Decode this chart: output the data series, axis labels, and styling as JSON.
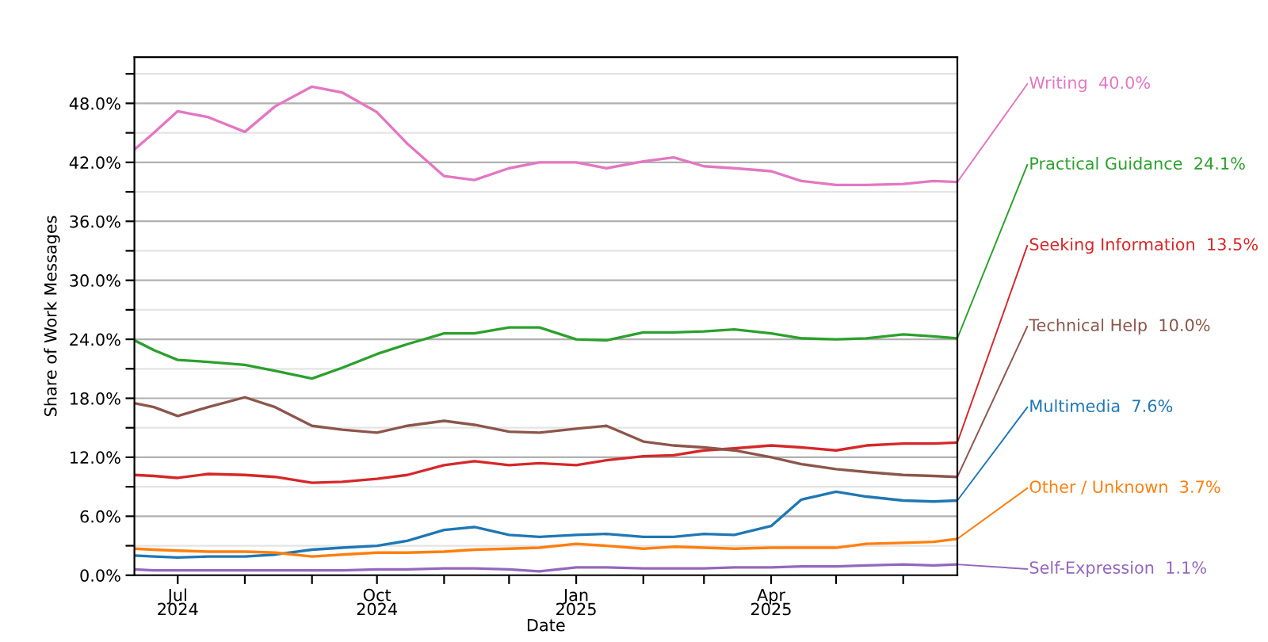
{
  "chart_data": {
    "type": "line",
    "xlabel": "Date",
    "ylabel": "Share of Work Messages",
    "x": [
      "2024-06-11",
      "2024-06-20",
      "2024-07-01",
      "2024-07-15",
      "2024-08-01",
      "2024-08-15",
      "2024-09-01",
      "2024-09-15",
      "2024-10-01",
      "2024-10-15",
      "2024-11-01",
      "2024-11-15",
      "2024-12-01",
      "2024-12-15",
      "2025-01-01",
      "2025-01-15",
      "2025-02-01",
      "2025-02-15",
      "2025-03-01",
      "2025-03-15",
      "2025-04-01",
      "2025-04-15",
      "2025-05-01",
      "2025-05-15",
      "2025-06-01",
      "2025-06-15",
      "2025-06-26"
    ],
    "series": [
      {
        "name": "Writing",
        "color": "#e377c2",
        "values": [
          43.3,
          45.0,
          47.2,
          46.6,
          45.1,
          47.7,
          49.7,
          49.1,
          47.1,
          43.9,
          40.6,
          40.2,
          41.4,
          42.0,
          42.0,
          41.4,
          42.1,
          42.5,
          41.6,
          41.4,
          41.1,
          40.1,
          39.7,
          39.7,
          39.8,
          40.1,
          40.0
        ],
        "value_labels": [
          null,
          null,
          null,
          null,
          null,
          null,
          null,
          null,
          null,
          null,
          null,
          null,
          null,
          null,
          null,
          null,
          null,
          null,
          null,
          null,
          null,
          null,
          null,
          null,
          null,
          null,
          "40.0%"
        ]
      },
      {
        "name": "Practical Guidance",
        "color": "#2ca02c",
        "values": [
          23.9,
          22.9,
          21.9,
          21.7,
          21.4,
          20.8,
          20.0,
          21.1,
          22.5,
          23.5,
          24.6,
          24.6,
          25.2,
          25.2,
          24.0,
          23.9,
          24.7,
          24.7,
          24.8,
          25.0,
          24.6,
          24.1,
          24.0,
          24.1,
          24.5,
          24.3,
          24.1
        ],
        "value_labels": [
          null,
          null,
          null,
          null,
          null,
          null,
          null,
          null,
          null,
          null,
          null,
          null,
          null,
          null,
          null,
          null,
          null,
          null,
          null,
          null,
          null,
          null,
          null,
          null,
          null,
          null,
          "24.1%"
        ]
      },
      {
        "name": "Seeking Information",
        "color": "#d62728",
        "values": [
          10.2,
          10.1,
          9.9,
          10.3,
          10.2,
          10.0,
          9.4,
          9.5,
          9.8,
          10.2,
          11.2,
          11.6,
          11.2,
          11.4,
          11.2,
          11.7,
          12.1,
          12.2,
          12.7,
          12.9,
          13.2,
          13.0,
          12.7,
          13.2,
          13.4,
          13.4,
          13.5
        ],
        "value_labels": [
          null,
          null,
          null,
          null,
          null,
          null,
          null,
          null,
          null,
          null,
          null,
          null,
          null,
          null,
          null,
          null,
          null,
          null,
          null,
          null,
          null,
          null,
          null,
          null,
          null,
          null,
          "13.5%"
        ]
      },
      {
        "name": "Technical Help",
        "color": "#8c564b",
        "values": [
          17.5,
          17.1,
          16.2,
          17.1,
          18.1,
          17.1,
          15.2,
          14.8,
          14.5,
          15.2,
          15.7,
          15.3,
          14.6,
          14.5,
          14.9,
          15.2,
          13.6,
          13.2,
          13.0,
          12.7,
          12.0,
          11.3,
          10.8,
          10.5,
          10.2,
          10.1,
          10.0
        ],
        "value_labels": [
          null,
          null,
          null,
          null,
          null,
          null,
          null,
          null,
          null,
          null,
          null,
          null,
          null,
          null,
          null,
          null,
          null,
          null,
          null,
          null,
          null,
          null,
          null,
          null,
          null,
          null,
          "10.0%"
        ]
      },
      {
        "name": "Multimedia",
        "color": "#1f77b4",
        "values": [
          2.0,
          1.9,
          1.8,
          1.9,
          1.9,
          2.1,
          2.6,
          2.8,
          3.0,
          3.5,
          4.6,
          4.9,
          4.1,
          3.9,
          4.1,
          4.2,
          3.9,
          3.9,
          4.2,
          4.1,
          5.0,
          7.7,
          8.5,
          8.0,
          7.6,
          7.5,
          7.6
        ],
        "value_labels": [
          null,
          null,
          null,
          null,
          null,
          null,
          null,
          null,
          null,
          null,
          null,
          null,
          null,
          null,
          null,
          null,
          null,
          null,
          null,
          null,
          null,
          null,
          null,
          null,
          null,
          null,
          "7.6%"
        ]
      },
      {
        "name": "Other / Unknown",
        "color": "#ff7f0e",
        "values": [
          2.7,
          2.6,
          2.5,
          2.4,
          2.4,
          2.3,
          1.9,
          2.1,
          2.3,
          2.3,
          2.4,
          2.6,
          2.7,
          2.8,
          3.2,
          3.0,
          2.7,
          2.9,
          2.8,
          2.7,
          2.8,
          2.8,
          2.8,
          3.2,
          3.3,
          3.4,
          3.7
        ],
        "value_labels": [
          null,
          null,
          null,
          null,
          null,
          null,
          null,
          null,
          null,
          null,
          null,
          null,
          null,
          null,
          null,
          null,
          null,
          null,
          null,
          null,
          null,
          null,
          null,
          null,
          null,
          null,
          "3.7%"
        ]
      },
      {
        "name": "Self-Expression",
        "color": "#9467bd",
        "values": [
          0.6,
          0.5,
          0.5,
          0.5,
          0.5,
          0.5,
          0.5,
          0.5,
          0.6,
          0.6,
          0.7,
          0.7,
          0.6,
          0.4,
          0.8,
          0.8,
          0.7,
          0.7,
          0.7,
          0.8,
          0.8,
          0.9,
          0.9,
          1.0,
          1.1,
          1.0,
          1.1
        ],
        "value_labels": [
          null,
          null,
          null,
          null,
          null,
          null,
          null,
          null,
          null,
          null,
          null,
          null,
          null,
          null,
          null,
          null,
          null,
          null,
          null,
          null,
          null,
          null,
          null,
          null,
          null,
          null,
          "1.1%"
        ]
      }
    ],
    "xlim": [
      "2024-06-11",
      "2025-06-26"
    ],
    "xticks": [
      {
        "value": "2024-07-01",
        "label": "Jul\n2024"
      },
      {
        "value": "2024-08-01",
        "label": null
      },
      {
        "value": "2024-09-01",
        "label": null
      },
      {
        "value": "2024-10-01",
        "label": "Oct\n2024"
      },
      {
        "value": "2024-11-01",
        "label": null
      },
      {
        "value": "2024-12-01",
        "label": null
      },
      {
        "value": "2025-01-01",
        "label": "Jan\n2025"
      },
      {
        "value": "2025-02-01",
        "label": null
      },
      {
        "value": "2025-03-01",
        "label": null
      },
      {
        "value": "2025-04-01",
        "label": "Apr\n2025"
      },
      {
        "value": "2025-05-01",
        "label": null
      },
      {
        "value": "2025-06-01",
        "label": null
      }
    ],
    "ylim": [
      0,
      52.7
    ],
    "yticks": [
      {
        "value": 0,
        "label": "0.0%"
      },
      {
        "value": 3,
        "label": null
      },
      {
        "value": 6,
        "label": "6.0%"
      },
      {
        "value": 9,
        "label": null
      },
      {
        "value": 12,
        "label": "12.0%"
      },
      {
        "value": 15,
        "label": null
      },
      {
        "value": 18,
        "label": "18.0%"
      },
      {
        "value": 21,
        "label": null
      },
      {
        "value": 24,
        "label": "24.0%"
      },
      {
        "value": 27,
        "label": null
      },
      {
        "value": 30,
        "label": "30.0%"
      },
      {
        "value": 33,
        "label": null
      },
      {
        "value": 36,
        "label": "36.0%"
      },
      {
        "value": 39,
        "label": null
      },
      {
        "value": 42,
        "label": "42.0%"
      },
      {
        "value": 45,
        "label": null
      },
      {
        "value": 48,
        "label": "48.0%"
      },
      {
        "value": 51,
        "label": null
      }
    ],
    "grid": "y",
    "legend": false
  }
}
